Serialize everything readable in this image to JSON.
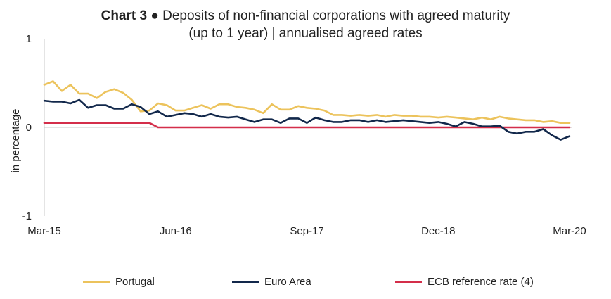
{
  "title": {
    "lead": "Chart 3 ●",
    "text1": "Deposits of non-financial corporations with agreed maturity",
    "text2": "(up to 1 year) | annualised agreed rates"
  },
  "chart_data": {
    "type": "line",
    "title": "Chart 3 ● Deposits of non-financial corporations with agreed maturity (up to 1 year) | annualised agreed rates",
    "xlabel": "",
    "ylabel": "in percentage",
    "ylim": [
      -1,
      1
    ],
    "yticks": [
      "1",
      "0",
      "-1"
    ],
    "x": [
      "2015-03",
      "2015-04",
      "2015-05",
      "2015-06",
      "2015-07",
      "2015-08",
      "2015-09",
      "2015-10",
      "2015-11",
      "2015-12",
      "2016-01",
      "2016-02",
      "2016-03",
      "2016-04",
      "2016-05",
      "2016-06",
      "2016-07",
      "2016-08",
      "2016-09",
      "2016-10",
      "2016-11",
      "2016-12",
      "2017-01",
      "2017-02",
      "2017-03",
      "2017-04",
      "2017-05",
      "2017-06",
      "2017-07",
      "2017-08",
      "2017-09",
      "2017-10",
      "2017-11",
      "2017-12",
      "2018-01",
      "2018-02",
      "2018-03",
      "2018-04",
      "2018-05",
      "2018-06",
      "2018-07",
      "2018-08",
      "2018-09",
      "2018-10",
      "2018-11",
      "2018-12",
      "2019-01",
      "2019-02",
      "2019-03",
      "2019-04",
      "2019-05",
      "2019-06",
      "2019-07",
      "2019-08",
      "2019-09",
      "2019-10",
      "2019-11",
      "2019-12",
      "2020-01",
      "2020-02",
      "2020-03"
    ],
    "xtick_labels": [
      "Mar-15",
      "Jun-16",
      "Sep-17",
      "Dec-18",
      "Mar-20"
    ],
    "xtick_positions": [
      "2015-03",
      "2016-06",
      "2017-09",
      "2018-12",
      "2020-03"
    ],
    "grid": false,
    "legend_position": "bottom",
    "series": [
      {
        "name": "Portugal",
        "color": "#ecc35c",
        "values": [
          0.48,
          0.52,
          0.41,
          0.48,
          0.38,
          0.38,
          0.33,
          0.4,
          0.43,
          0.39,
          0.31,
          0.18,
          0.19,
          0.27,
          0.25,
          0.19,
          0.19,
          0.22,
          0.25,
          0.21,
          0.26,
          0.26,
          0.23,
          0.22,
          0.2,
          0.16,
          0.26,
          0.2,
          0.2,
          0.24,
          0.22,
          0.21,
          0.19,
          0.14,
          0.14,
          0.13,
          0.14,
          0.13,
          0.14,
          0.12,
          0.14,
          0.13,
          0.13,
          0.12,
          0.12,
          0.11,
          0.12,
          0.11,
          0.1,
          0.09,
          0.11,
          0.09,
          0.12,
          0.1,
          0.09,
          0.08,
          0.08,
          0.06,
          0.07,
          0.05,
          0.05
        ]
      },
      {
        "name": "Euro Area",
        "color": "#12284b",
        "values": [
          0.3,
          0.29,
          0.29,
          0.27,
          0.31,
          0.22,
          0.25,
          0.25,
          0.21,
          0.21,
          0.26,
          0.23,
          0.15,
          0.18,
          0.12,
          0.14,
          0.16,
          0.15,
          0.12,
          0.15,
          0.12,
          0.11,
          0.12,
          0.09,
          0.06,
          0.09,
          0.09,
          0.05,
          0.1,
          0.1,
          0.05,
          0.11,
          0.08,
          0.06,
          0.06,
          0.08,
          0.08,
          0.06,
          0.08,
          0.06,
          0.07,
          0.08,
          0.07,
          0.06,
          0.05,
          0.06,
          0.04,
          0.01,
          0.06,
          0.04,
          0.01,
          0.01,
          0.02,
          -0.05,
          -0.07,
          -0.05,
          -0.05,
          -0.02,
          -0.09,
          -0.14,
          -0.1
        ]
      },
      {
        "name": "ECB reference rate (4)",
        "color": "#d42e4a",
        "values": [
          0.05,
          0.05,
          0.05,
          0.05,
          0.05,
          0.05,
          0.05,
          0.05,
          0.05,
          0.05,
          0.05,
          0.05,
          0.05,
          0.0,
          0.0,
          0.0,
          0.0,
          0.0,
          0.0,
          0.0,
          0.0,
          0.0,
          0.0,
          0.0,
          0.0,
          0.0,
          0.0,
          0.0,
          0.0,
          0.0,
          0.0,
          0.0,
          0.0,
          0.0,
          0.0,
          0.0,
          0.0,
          0.0,
          0.0,
          0.0,
          0.0,
          0.0,
          0.0,
          0.0,
          0.0,
          0.0,
          0.0,
          0.0,
          0.0,
          0.0,
          0.0,
          0.0,
          0.0,
          0.0,
          0.0,
          0.0,
          0.0,
          0.0,
          0.0,
          0.0,
          0.0
        ]
      }
    ]
  }
}
